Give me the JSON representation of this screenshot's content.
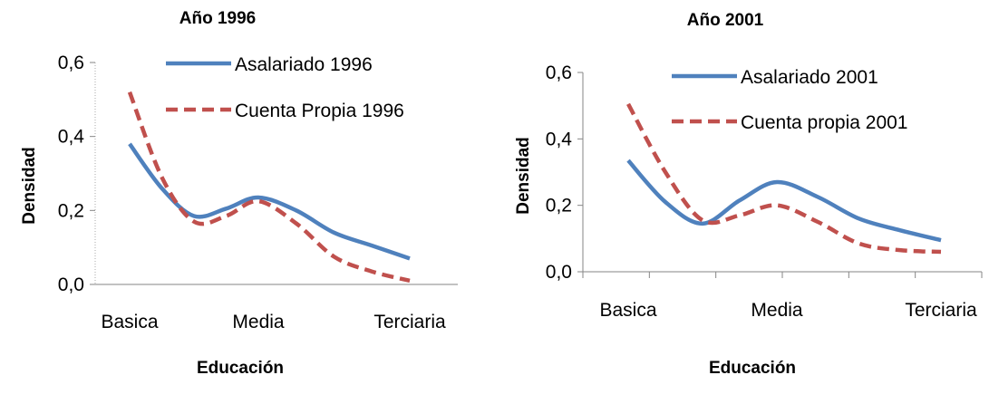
{
  "chart_data": [
    {
      "type": "line",
      "title": "Año 1996",
      "xlabel": "Educación",
      "ylabel": "Densidad",
      "categories": [
        "Basica",
        "Media",
        "Terciaria"
      ],
      "ylim": [
        0,
        0.6
      ],
      "yticks": [
        "0,0",
        "0,2",
        "0,4",
        "0,6"
      ],
      "grid": false,
      "legend_position": "top-right",
      "series": [
        {
          "name": "Asalariado 1996",
          "color": "#4f81bd",
          "dash": "solid",
          "x": [
            0,
            0.25,
            0.5,
            0.75,
            1.0,
            1.25,
            1.5,
            1.75,
            2.0
          ],
          "values": [
            0.38,
            0.26,
            0.185,
            0.205,
            0.235,
            0.2,
            0.14,
            0.105,
            0.07
          ]
        },
        {
          "name": "Cuenta Propia 1996",
          "color": "#c0504d",
          "dash": "dashed",
          "x": [
            0,
            0.25,
            0.5,
            0.75,
            1.0,
            1.25,
            1.5,
            1.75,
            2.0
          ],
          "values": [
            0.52,
            0.29,
            0.17,
            0.185,
            0.225,
            0.165,
            0.075,
            0.035,
            0.01
          ]
        }
      ]
    },
    {
      "type": "line",
      "title": "Año 2001",
      "xlabel": "Educación",
      "ylabel": "Densidad",
      "categories": [
        "Basica",
        "Media",
        "Terciaria"
      ],
      "ylim": [
        0,
        0.6
      ],
      "yticks": [
        "0,0",
        "0,2",
        "0,4",
        "0,6"
      ],
      "grid": false,
      "legend_position": "top-right",
      "series": [
        {
          "name": "Asalariado 2001",
          "color": "#4f81bd",
          "dash": "solid",
          "x": [
            0,
            0.25,
            0.5,
            0.75,
            1.0,
            1.25,
            1.5,
            1.75,
            2.0
          ],
          "values": [
            0.335,
            0.21,
            0.145,
            0.215,
            0.27,
            0.225,
            0.16,
            0.125,
            0.095
          ]
        },
        {
          "name": "Cuenta propia 2001",
          "color": "#c0504d",
          "dash": "dashed",
          "x": [
            0,
            0.25,
            0.5,
            0.75,
            1.0,
            1.25,
            1.5,
            1.75,
            2.0
          ],
          "values": [
            0.505,
            0.3,
            0.155,
            0.17,
            0.2,
            0.15,
            0.085,
            0.065,
            0.06
          ]
        }
      ]
    }
  ]
}
